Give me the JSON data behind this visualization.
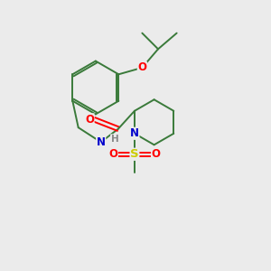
{
  "background_color": "#ebebeb",
  "bond_color": "#3a7a3a",
  "atom_colors": {
    "O": "#ff0000",
    "N": "#0000cc",
    "S": "#cccc00",
    "H": "#888888"
  },
  "figsize": [
    3.0,
    3.0
  ],
  "dpi": 100,
  "xlim": [
    0,
    10
  ],
  "ylim": [
    0,
    10
  ]
}
